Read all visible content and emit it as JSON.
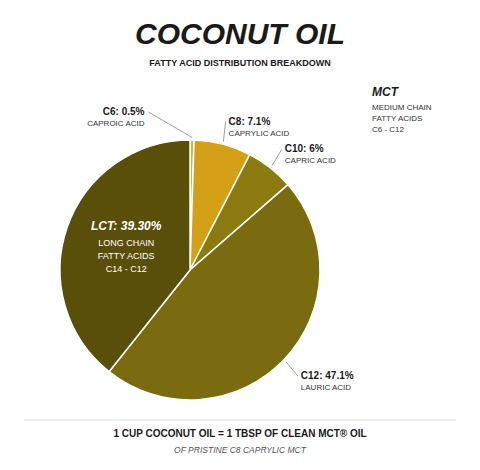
{
  "chart_data": {
    "type": "pie",
    "title": "COCONUT OIL",
    "subtitle": "FATTY ACID DISTRIBUTION BREAKDOWN",
    "values": [
      0.5,
      7.1,
      6.0,
      47.1,
      39.3
    ],
    "value_labels": [
      "C6: 0.5%",
      "C8: 7.1%",
      "C10: 6%",
      "C12: 47.1%",
      "LCT: 39.30%"
    ],
    "sublabels": [
      [
        "CAPROIC ACID"
      ],
      [
        "CAPRYLIC ACID"
      ],
      [
        "CAPRIC ACID"
      ],
      [
        "LAURIC ACID"
      ],
      [
        "LONG CHAIN",
        "FATTY ACIDS",
        "C14 - C12"
      ]
    ],
    "colors": [
      "#c8b84a",
      "#d4a017",
      "#8b7a10",
      "#7a6b10",
      "#5a4f0a"
    ],
    "data_labels": true,
    "mct_label": {
      "title": "MCT",
      "lines": [
        "MEDIUM CHAIN",
        "FATTY ACIDS",
        "C6 - C12"
      ]
    },
    "footer": [
      "1 CUP COCONUT OIL = 1 TBSP OF CLEAN MCT® OIL",
      "OF PRISTINE C8 CAPRYLIC MCT"
    ]
  }
}
